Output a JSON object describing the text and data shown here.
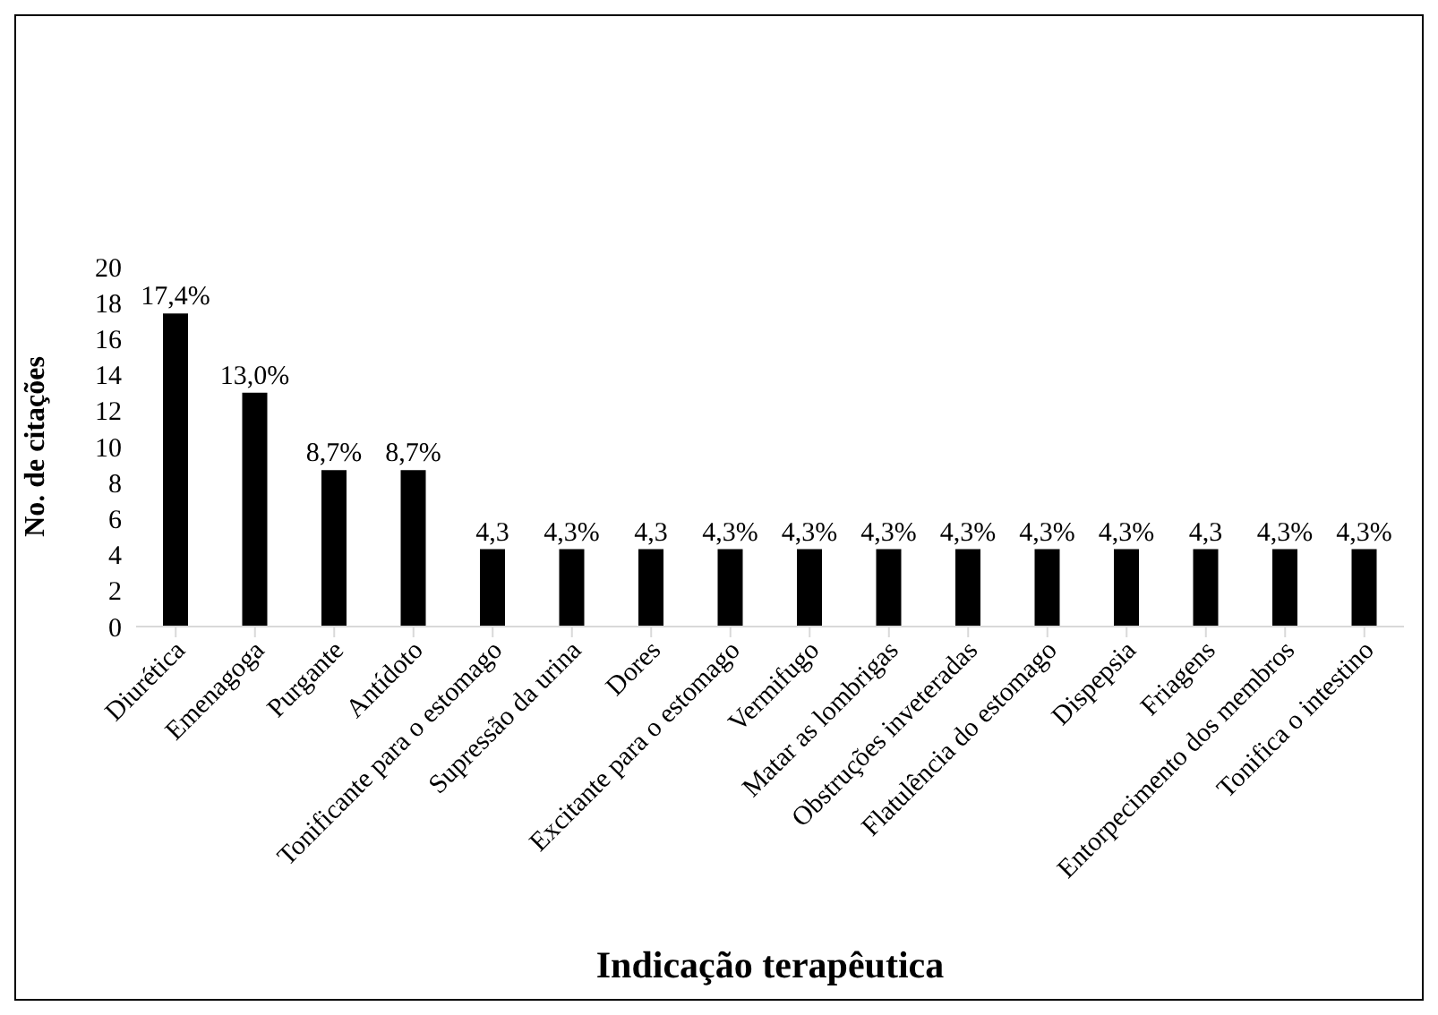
{
  "chart_data": {
    "type": "bar",
    "xlabel": "Indicação terapêutica",
    "ylabel": "No. de citações",
    "categories": [
      "Diurética",
      "Emenagoga",
      "Purgante",
      "Antídoto",
      "Tonificante para o estomago",
      "Supressão da urina",
      "Dores",
      "Excitante para o estomago",
      "Vermifugo",
      "Matar as lombrigas",
      "Obstruções inveteradas",
      "Flatulência do estomago",
      "Dispepsia",
      "Friagens",
      "Entorpecimento dos membros",
      "Tonifica o intestino"
    ],
    "values": [
      17.4,
      13.0,
      8.7,
      8.7,
      4.3,
      4.3,
      4.3,
      4.3,
      4.3,
      4.3,
      4.3,
      4.3,
      4.3,
      4.3,
      4.3,
      4.3
    ],
    "value_labels": [
      "17,4%",
      "13,0%",
      "8,7%",
      "8,7%",
      "4,3",
      "4,3%",
      "4,3",
      "4,3%",
      "4,3%",
      "4,3%",
      "4,3%",
      "4,3%",
      "4,3%",
      "4,3",
      "4,3%",
      "4,3%"
    ],
    "color": "#000000",
    "ylim": [
      0,
      20
    ],
    "yticks": [
      0,
      2,
      4,
      6,
      8,
      10,
      12,
      14,
      16,
      18,
      20
    ],
    "grid": false,
    "legend": false
  }
}
